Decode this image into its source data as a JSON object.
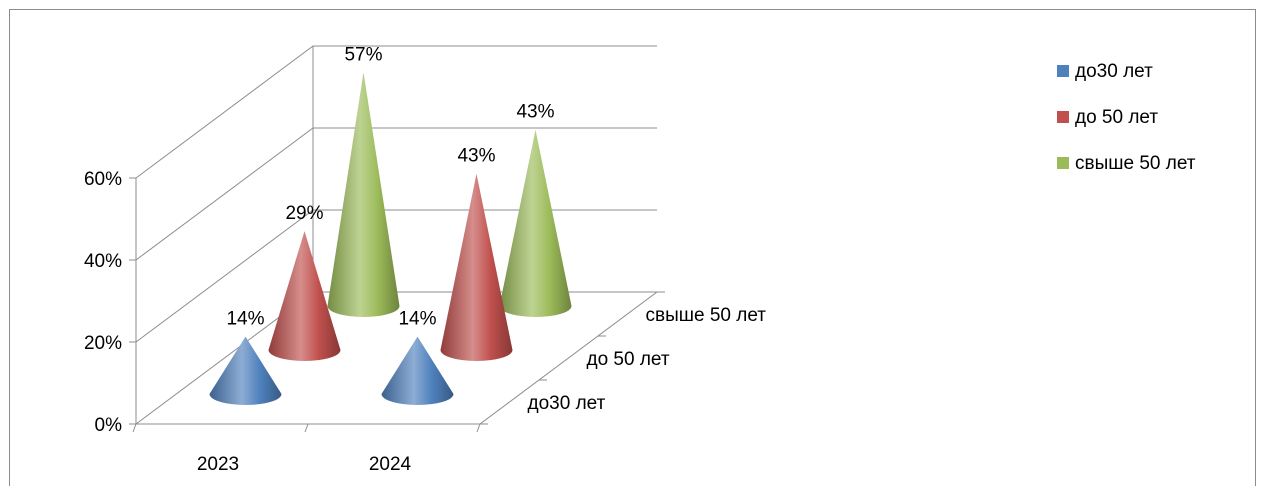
{
  "chart_data": {
    "type": "bar",
    "style": "3d-cone",
    "categories": [
      "2023",
      "2024"
    ],
    "series": [
      {
        "name": "до30 лет",
        "values": [
          14,
          14
        ],
        "color": "#4f81bd"
      },
      {
        "name": "до 50 лет",
        "values": [
          29,
          43
        ],
        "color": "#c0504d"
      },
      {
        "name": "свыше 50 лет",
        "values": [
          57,
          43
        ],
        "color": "#9bbb59"
      }
    ],
    "data_labels": [
      "14%",
      "14%",
      "29%",
      "43%",
      "57%",
      "43%"
    ],
    "y_ticks": [
      "0%",
      "20%",
      "40%",
      "60%"
    ],
    "ylim": [
      0,
      60
    ],
    "depth_axis_labels": [
      "до30 лет",
      "до 50 лет",
      "свыше 50 лет"
    ],
    "legend": {
      "position": "right",
      "items": [
        "до30 лет",
        "до 50 лет",
        "свыше 50 лет"
      ]
    },
    "grid": true
  }
}
